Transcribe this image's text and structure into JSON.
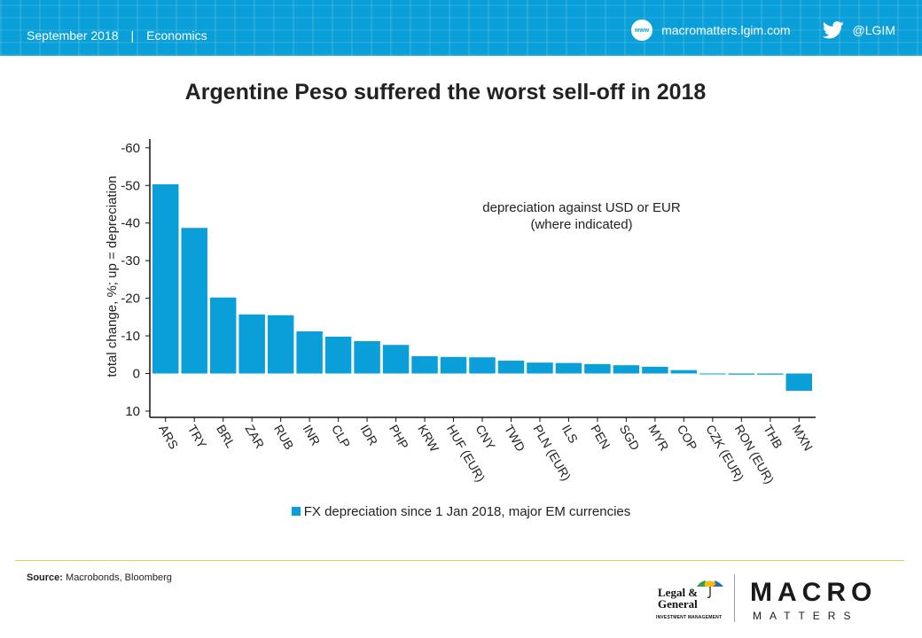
{
  "header": {
    "date": "September 2018",
    "separator": "|",
    "section": "Economics",
    "website": "macromatters.lgim.com",
    "www_badge": "www",
    "twitter": "@LGIM",
    "band_color": "#0a9fd8"
  },
  "title": "Argentine Peso suffered the worst sell-off in 2018",
  "chart_data": {
    "type": "bar",
    "title": "Argentine Peso suffered the worst sell-off in 2018",
    "ylabel": "total change, %; up = depreciation",
    "xlabel": "",
    "y_inverted": true,
    "ylim": [
      10,
      -60
    ],
    "yticks": [
      -60,
      -50,
      -40,
      -30,
      -20,
      -10,
      0,
      10
    ],
    "grid": false,
    "annotation": [
      "depreciation against USD or EUR",
      "(where indicated)"
    ],
    "bar_color": "#0a9fd8",
    "categories": [
      "ARS",
      "TRY",
      "BRL",
      "ZAR",
      "RUB",
      "INR",
      "CLP",
      "IDR",
      "PHP",
      "KRW",
      "HUF (EUR)",
      "CNY",
      "TWD",
      "PLN (EUR)",
      "ILS",
      "PEN",
      "SGD",
      "MYR",
      "COP",
      "CZK (EUR)",
      "RON (EUR)",
      "THB",
      "MXN"
    ],
    "series": [
      {
        "name": "FX depreciation since 1 Jan 2018, major EM currencies",
        "values": [
          -50.3,
          -38.7,
          -20.2,
          -15.7,
          -15.5,
          -11.2,
          -9.8,
          -8.6,
          -7.6,
          -4.6,
          -4.4,
          -4.3,
          -3.4,
          -2.9,
          -2.8,
          -2.5,
          -2.2,
          -1.8,
          -0.9,
          0.2,
          0.3,
          0.3,
          4.6
        ]
      }
    ],
    "legend_position": "bottom"
  },
  "footer": {
    "source_label": "Source:",
    "source_text": "Macrobonds, Bloomberg",
    "lg_name_1": "Legal &",
    "lg_name_2": "General",
    "lg_sub": "INVESTMENT MANAGEMENT",
    "mm_macro": "MACRO",
    "mm_matters": "MATTERS",
    "divider_color": "#d8d350"
  }
}
